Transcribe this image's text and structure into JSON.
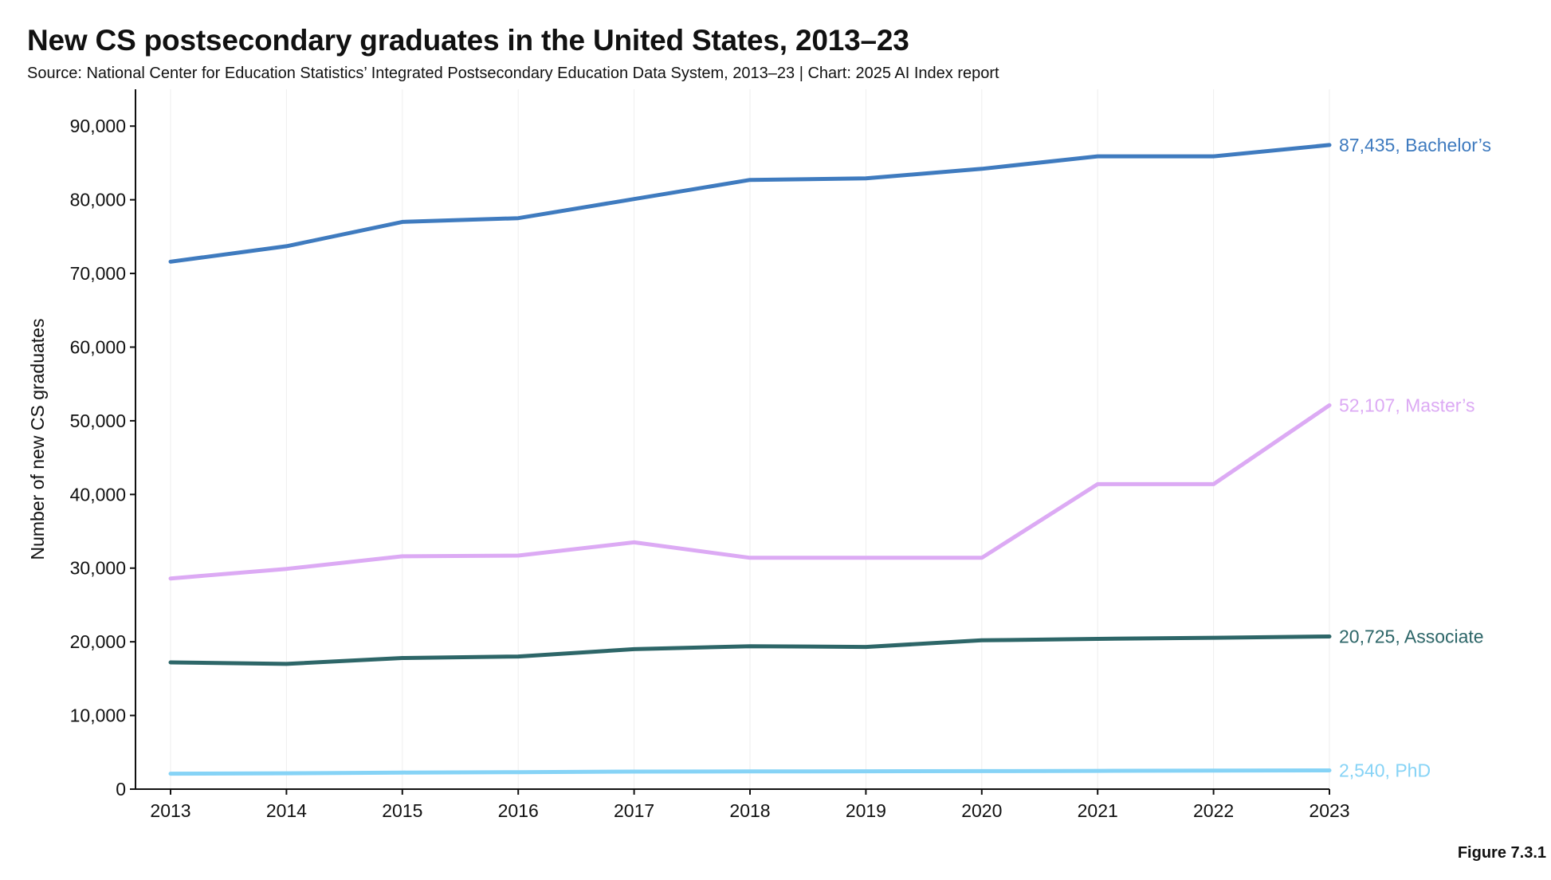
{
  "figure_label": "Figure 7.3.1",
  "chart_data": {
    "type": "line",
    "title": "New CS postsecondary graduates in the United States, 2013–23",
    "subtitle": "Source: National Center for Education Statistics’ Integrated Postsecondary Education Data System, 2013–23 | Chart: 2025 AI Index report",
    "xlabel": "",
    "ylabel": "Number of new CS graduates",
    "x": [
      "2013",
      "2014",
      "2015",
      "2016",
      "2017",
      "2018",
      "2019",
      "2020",
      "2021",
      "2022",
      "2023"
    ],
    "ylim": [
      0,
      95000
    ],
    "yticks": [
      0,
      10000,
      20000,
      30000,
      40000,
      50000,
      60000,
      70000,
      80000,
      90000
    ],
    "ytick_labels": [
      "0",
      "10,000",
      "20,000",
      "30,000",
      "40,000",
      "50,000",
      "60,000",
      "70,000",
      "80,000",
      "90,000"
    ],
    "grid": "vertical",
    "series": [
      {
        "name": "Bachelor’s",
        "end_label": "87,435, Bachelor’s",
        "color": "#3f7bbf",
        "values": [
          71600,
          73700,
          77000,
          77500,
          80100,
          82700,
          82900,
          84200,
          85900,
          85900,
          87435
        ]
      },
      {
        "name": "Master’s",
        "end_label": "52,107, Master’s",
        "color": "#dcaaf4",
        "values": [
          28600,
          29900,
          31600,
          31700,
          33500,
          31400,
          31400,
          31400,
          41400,
          41400,
          52107
        ]
      },
      {
        "name": "Associate",
        "end_label": "20,725, Associate",
        "color": "#2d6668",
        "values": [
          17200,
          17000,
          17800,
          18000,
          19000,
          19400,
          19300,
          20200,
          20400,
          20550,
          20725
        ]
      },
      {
        "name": "PhD",
        "end_label": "2,540, PhD",
        "color": "#86d3f6",
        "values": [
          2100,
          2150,
          2250,
          2300,
          2380,
          2400,
          2420,
          2450,
          2480,
          2510,
          2540
        ]
      }
    ]
  }
}
